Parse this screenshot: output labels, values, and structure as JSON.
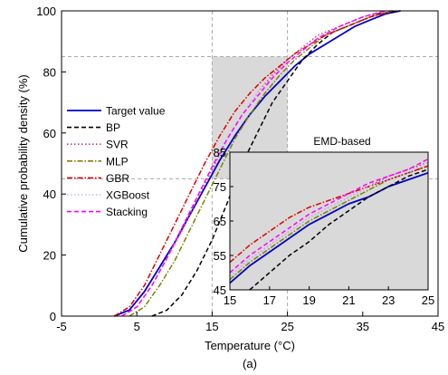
{
  "chart_data": [
    {
      "type": "line",
      "panel": "main",
      "xlabel": "Temperature (°C)",
      "ylabel": "Cumulative probability density (%)",
      "caption": "(a)",
      "xlim": [
        -5,
        45
      ],
      "ylim": [
        0,
        100
      ],
      "x_ticks": [
        -5,
        5,
        15,
        25,
        35,
        45
      ],
      "y_ticks": [
        0,
        20,
        40,
        60,
        80,
        100
      ],
      "grid": "dashed reference lines at x=15, x=25, y=45, y=85",
      "shaded_region": {
        "x": [
          15,
          25
        ],
        "y": [
          45,
          85
        ]
      },
      "legend_position": "left",
      "series": [
        {
          "name": "Target value",
          "color": "#0000cc",
          "dash": "solid",
          "points": [
            [
              2,
              0
            ],
            [
              4,
              2
            ],
            [
              6,
              8
            ],
            [
              8,
              16
            ],
            [
              10,
              24
            ],
            [
              12,
              33
            ],
            [
              14,
              42
            ],
            [
              16,
              51
            ],
            [
              18,
              59
            ],
            [
              20,
              66
            ],
            [
              22,
              72
            ],
            [
              24,
              77
            ],
            [
              26,
              82
            ],
            [
              28,
              86
            ],
            [
              30,
              89
            ],
            [
              32,
              92
            ],
            [
              34,
              95
            ],
            [
              36,
              97
            ],
            [
              38,
              99
            ],
            [
              40,
              100
            ]
          ]
        },
        {
          "name": "BP",
          "color": "#000000",
          "dash": "dashed",
          "points": [
            [
              7,
              0
            ],
            [
              9,
              2
            ],
            [
              11,
              7
            ],
            [
              13,
              15
            ],
            [
              15,
              25
            ],
            [
              17,
              37
            ],
            [
              19,
              50
            ],
            [
              21,
              60
            ],
            [
              23,
              70
            ],
            [
              25,
              77
            ],
            [
              27,
              84
            ],
            [
              29,
              89
            ],
            [
              31,
              93
            ],
            [
              34,
              96
            ],
            [
              37,
              99
            ],
            [
              40,
              100
            ]
          ]
        },
        {
          "name": "SVR",
          "color": "#cc3399",
          "dash": "dotted",
          "points": [
            [
              3,
              0
            ],
            [
              5,
              3
            ],
            [
              7,
              10
            ],
            [
              9,
              19
            ],
            [
              11,
              28
            ],
            [
              13,
              38
            ],
            [
              15,
              48
            ],
            [
              17,
              58
            ],
            [
              19,
              66
            ],
            [
              21,
              73
            ],
            [
              23,
              79
            ],
            [
              25,
              84
            ],
            [
              27,
              88
            ],
            [
              29,
              92
            ],
            [
              32,
              95
            ],
            [
              35,
              98
            ],
            [
              38,
              100
            ]
          ]
        },
        {
          "name": "MLP",
          "color": "#808000",
          "dash": "dashdot",
          "points": [
            [
              4,
              0
            ],
            [
              6,
              3
            ],
            [
              8,
              10
            ],
            [
              10,
              18
            ],
            [
              12,
              28
            ],
            [
              14,
              38
            ],
            [
              16,
              48
            ],
            [
              18,
              58
            ],
            [
              20,
              66
            ],
            [
              22,
              73
            ],
            [
              24,
              79
            ],
            [
              26,
              84
            ],
            [
              28,
              88
            ],
            [
              30,
              92
            ],
            [
              33,
              95
            ],
            [
              36,
              98
            ],
            [
              39,
              100
            ]
          ]
        },
        {
          "name": "GBR",
          "color": "#dd0000",
          "dash": "dashdot",
          "points": [
            [
              2,
              0
            ],
            [
              4,
              3
            ],
            [
              6,
              10
            ],
            [
              8,
              20
            ],
            [
              10,
              30
            ],
            [
              12,
              40
            ],
            [
              14,
              50
            ],
            [
              16,
              59
            ],
            [
              18,
              67
            ],
            [
              20,
              73
            ],
            [
              22,
              78
            ],
            [
              24,
              82
            ],
            [
              26,
              86
            ],
            [
              28,
              89
            ],
            [
              30,
              92
            ],
            [
              33,
              95
            ],
            [
              36,
              98
            ],
            [
              39,
              100
            ]
          ]
        },
        {
          "name": "XGBoost",
          "color": "#bbbbff",
          "dash": "dotted",
          "points": [
            [
              3,
              0
            ],
            [
              5,
              3
            ],
            [
              7,
              10
            ],
            [
              9,
              19
            ],
            [
              11,
              29
            ],
            [
              13,
              39
            ],
            [
              15,
              49
            ],
            [
              17,
              58
            ],
            [
              19,
              66
            ],
            [
              21,
              73
            ],
            [
              23,
              78
            ],
            [
              25,
              83
            ],
            [
              27,
              87
            ],
            [
              29,
              91
            ],
            [
              32,
              95
            ],
            [
              35,
              98
            ],
            [
              38,
              100
            ]
          ]
        },
        {
          "name": "Stacking",
          "color": "#ff00ff",
          "dash": "dashed",
          "points": [
            [
              3,
              0
            ],
            [
              5,
              3
            ],
            [
              7,
              10
            ],
            [
              9,
              19
            ],
            [
              11,
              29
            ],
            [
              13,
              39
            ],
            [
              15,
              49
            ],
            [
              17,
              58
            ],
            [
              19,
              66
            ],
            [
              21,
              72
            ],
            [
              23,
              78
            ],
            [
              25,
              83
            ],
            [
              27,
              87
            ],
            [
              29,
              91
            ],
            [
              32,
              95
            ],
            [
              35,
              98
            ],
            [
              38,
              100
            ]
          ]
        }
      ]
    },
    {
      "type": "line",
      "panel": "inset",
      "title": "EMD-based",
      "xlim": [
        15,
        25
      ],
      "ylim": [
        45,
        85
      ],
      "x_ticks": [
        15,
        17,
        19,
        21,
        23,
        25
      ],
      "y_ticks": [
        45,
        55,
        65,
        75,
        85
      ],
      "series": [
        {
          "name": "Target value",
          "color": "#0000cc",
          "dash": "solid",
          "points": [
            [
              15,
              47
            ],
            [
              16,
              52
            ],
            [
              17,
              56
            ],
            [
              18,
              60
            ],
            [
              19,
              64
            ],
            [
              20,
              67
            ],
            [
              21,
              70
            ],
            [
              22,
              72
            ],
            [
              23,
              75
            ],
            [
              24,
              77
            ],
            [
              25,
              79
            ]
          ]
        },
        {
          "name": "BP",
          "color": "#000000",
          "dash": "dashed",
          "points": [
            [
              16,
              45
            ],
            [
              17,
              50
            ],
            [
              18,
              55
            ],
            [
              19,
              59
            ],
            [
              20,
              64
            ],
            [
              21,
              68
            ],
            [
              22,
              72
            ],
            [
              23,
              75
            ],
            [
              24,
              78
            ],
            [
              25,
              80
            ]
          ]
        },
        {
          "name": "SVR",
          "color": "#cc3399",
          "dash": "dotted",
          "points": [
            [
              15,
              49
            ],
            [
              16,
              54
            ],
            [
              17,
              58
            ],
            [
              18,
              62
            ],
            [
              19,
              66
            ],
            [
              20,
              69
            ],
            [
              21,
              72
            ],
            [
              22,
              75
            ],
            [
              23,
              78
            ],
            [
              24,
              80
            ],
            [
              25,
              82
            ]
          ]
        },
        {
          "name": "MLP",
          "color": "#808000",
          "dash": "dashdot",
          "points": [
            [
              15,
              48
            ],
            [
              16,
              53
            ],
            [
              17,
              57
            ],
            [
              18,
              61
            ],
            [
              19,
              65
            ],
            [
              20,
              68
            ],
            [
              21,
              71
            ],
            [
              22,
              74
            ],
            [
              23,
              77
            ],
            [
              24,
              79
            ],
            [
              25,
              81
            ]
          ]
        },
        {
          "name": "GBR",
          "color": "#dd0000",
          "dash": "dashdot",
          "points": [
            [
              15,
              53
            ],
            [
              16,
              58
            ],
            [
              17,
              62
            ],
            [
              18,
              66
            ],
            [
              19,
              69
            ],
            [
              20,
              71
            ],
            [
              21,
              73
            ],
            [
              22,
              75
            ],
            [
              23,
              77
            ],
            [
              24,
              79
            ],
            [
              25,
              81
            ]
          ]
        },
        {
          "name": "XGBoost",
          "color": "#bbbbff",
          "dash": "dotted",
          "points": [
            [
              15,
              49
            ],
            [
              16,
              54
            ],
            [
              17,
              58
            ],
            [
              18,
              62
            ],
            [
              19,
              66
            ],
            [
              20,
              69
            ],
            [
              21,
              72
            ],
            [
              22,
              75
            ],
            [
              23,
              77
            ],
            [
              24,
              79
            ],
            [
              25,
              82
            ]
          ]
        },
        {
          "name": "Stacking",
          "color": "#ff00ff",
          "dash": "dashed",
          "points": [
            [
              15,
              50
            ],
            [
              16,
              55
            ],
            [
              17,
              59
            ],
            [
              18,
              63
            ],
            [
              19,
              67
            ],
            [
              20,
              70
            ],
            [
              21,
              73
            ],
            [
              22,
              76
            ],
            [
              23,
              78
            ],
            [
              24,
              80
            ],
            [
              25,
              83
            ]
          ]
        }
      ]
    }
  ]
}
